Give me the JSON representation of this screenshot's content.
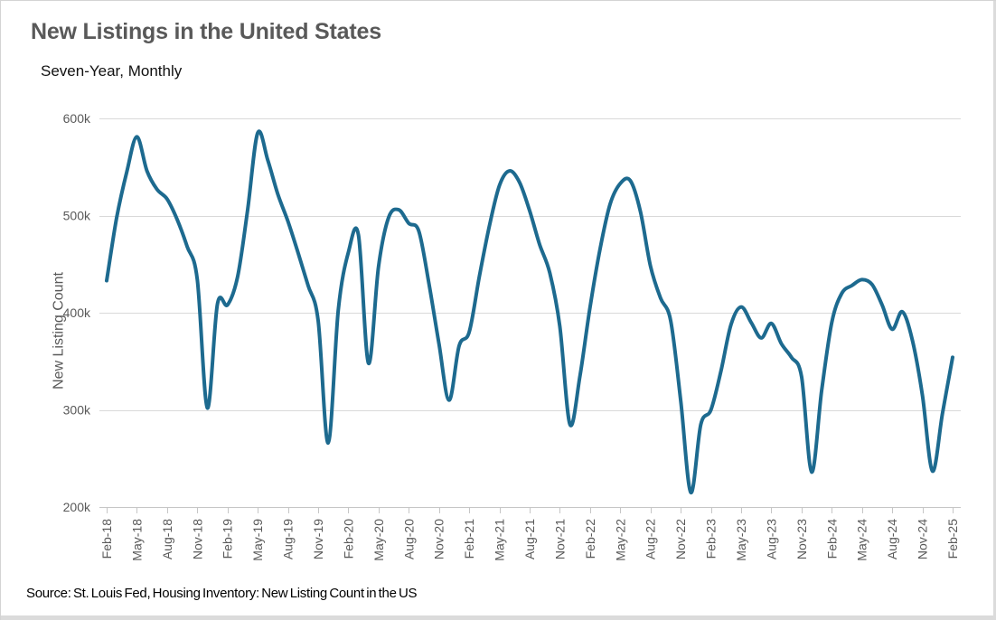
{
  "chart_data": {
    "type": "line",
    "title": "New Listings in the United States",
    "subtitle": "Seven-Year, Monthly",
    "ylabel": "New Listing Count",
    "source_note": "Source: St. Louis Fed, Housing Inventory: New Listing Count in the US",
    "series_name": "New Listing Count",
    "legend": false,
    "grid": true,
    "x_tick_interval": 3,
    "y_ticks": [
      200,
      300,
      400,
      500,
      600
    ],
    "y_tick_suffix": "k",
    "ylim": [
      200,
      600
    ],
    "x": [
      "Feb-18",
      "Mar-18",
      "Apr-18",
      "May-18",
      "Jun-18",
      "Jul-18",
      "Aug-18",
      "Sep-18",
      "Oct-18",
      "Nov-18",
      "Dec-18",
      "Jan-19",
      "Feb-19",
      "Mar-19",
      "Apr-19",
      "May-19",
      "Jun-19",
      "Jul-19",
      "Aug-19",
      "Sep-19",
      "Oct-19",
      "Nov-19",
      "Dec-19",
      "Jan-20",
      "Feb-20",
      "Mar-20",
      "Apr-20",
      "May-20",
      "Jun-20",
      "Jul-20",
      "Aug-20",
      "Sep-20",
      "Oct-20",
      "Nov-20",
      "Dec-20",
      "Jan-21",
      "Feb-21",
      "Mar-21",
      "Apr-21",
      "May-21",
      "Jun-21",
      "Jul-21",
      "Aug-21",
      "Sep-21",
      "Oct-21",
      "Nov-21",
      "Dec-21",
      "Jan-22",
      "Feb-22",
      "Mar-22",
      "Apr-22",
      "May-22",
      "Jun-22",
      "Jul-22",
      "Aug-22",
      "Sep-22",
      "Oct-22",
      "Nov-22",
      "Dec-22",
      "Jan-23",
      "Feb-23",
      "Mar-23",
      "Apr-23",
      "May-23",
      "Jun-23",
      "Jul-23",
      "Aug-23",
      "Sep-23",
      "Oct-23",
      "Nov-23",
      "Dec-23",
      "Jan-24",
      "Feb-24",
      "Mar-24",
      "Apr-24",
      "May-24",
      "Jun-24",
      "Jul-24",
      "Aug-24",
      "Sep-24",
      "Oct-24",
      "Nov-24",
      "Dec-24",
      "Jan-25",
      "Feb-25"
    ],
    "values": [
      433,
      498,
      545,
      581,
      546,
      527,
      517,
      496,
      468,
      434,
      302,
      409,
      408,
      437,
      506,
      585,
      557,
      522,
      494,
      462,
      428,
      392,
      266,
      403,
      462,
      480,
      348,
      448,
      498,
      506,
      492,
      484,
      430,
      368,
      310,
      366,
      380,
      437,
      489,
      531,
      546,
      534,
      505,
      470,
      441,
      386,
      285,
      335,
      406,
      466,
      512,
      533,
      536,
      504,
      448,
      415,
      392,
      310,
      215,
      285,
      300,
      340,
      388,
      406,
      390,
      374,
      389,
      368,
      354,
      334,
      236,
      320,
      390,
      420,
      428,
      434,
      429,
      408,
      383,
      401,
      372,
      315,
      237,
      297,
      354
    ],
    "values_unit": "thousands",
    "colors": {
      "line": "#1D6A8F",
      "grid": "#D9D9D9",
      "axis": "#C6C6C6",
      "title": "#595959",
      "axis_text": "#595959",
      "subtitle_text": "#111111",
      "source_text": "#000000",
      "background": "#FFFFFF",
      "frame": "#DBDBDB"
    }
  }
}
